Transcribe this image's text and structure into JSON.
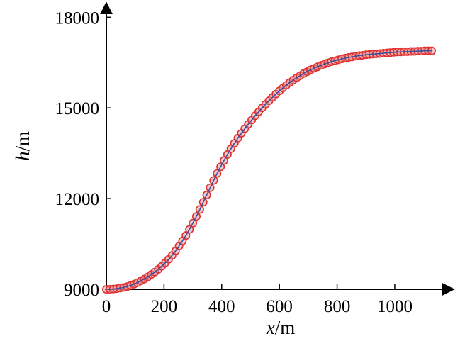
{
  "chart_data": {
    "type": "scatter",
    "title": "",
    "xlabel": {
      "var": "x",
      "unit": "/m"
    },
    "ylabel": {
      "var": "h",
      "unit": "/m"
    },
    "xlim": [
      0,
      1150
    ],
    "ylim": [
      9000,
      18500
    ],
    "x_ticks": [
      0,
      200,
      400,
      600,
      800,
      1000
    ],
    "y_ticks": [
      9000,
      12000,
      15000,
      18000
    ],
    "grid": false,
    "legend": "none",
    "colors": {
      "marker_edge": "#e03030",
      "marker_fill": "#e89a9a",
      "line": "#3a4fa0"
    },
    "series": [
      {
        "name": "",
        "x": [
          0,
          12,
          24,
          36,
          48,
          60,
          72,
          84,
          96,
          108,
          120,
          132,
          144,
          156,
          168,
          180,
          192,
          204,
          216,
          228,
          240,
          252,
          264,
          276,
          288,
          300,
          312,
          324,
          336,
          348,
          360,
          372,
          384,
          396,
          408,
          420,
          432,
          444,
          456,
          468,
          480,
          492,
          504,
          516,
          528,
          540,
          552,
          564,
          576,
          588,
          600,
          612,
          624,
          636,
          648,
          660,
          672,
          684,
          696,
          708,
          720,
          732,
          744,
          756,
          768,
          780,
          792,
          804,
          816,
          828,
          840,
          852,
          864,
          876,
          888,
          900,
          912,
          924,
          936,
          948,
          960,
          972,
          984,
          996,
          1008,
          1020,
          1032,
          1044,
          1056,
          1068,
          1080,
          1092,
          1104,
          1116,
          1128
        ],
        "y": [
          9000,
          9000,
          9010,
          9020,
          9040,
          9060,
          9090,
          9130,
          9170,
          9220,
          9280,
          9340,
          9410,
          9490,
          9570,
          9660,
          9760,
          9870,
          9990,
          10120,
          10270,
          10430,
          10600,
          10780,
          10980,
          11190,
          11410,
          11640,
          11880,
          12120,
          12360,
          12600,
          12830,
          13050,
          13260,
          13460,
          13650,
          13830,
          14000,
          14160,
          14310,
          14460,
          14600,
          14740,
          14870,
          15000,
          15120,
          15240,
          15350,
          15460,
          15560,
          15660,
          15750,
          15840,
          15920,
          16000,
          16070,
          16140,
          16200,
          16260,
          16310,
          16360,
          16410,
          16450,
          16490,
          16530,
          16560,
          16590,
          16620,
          16650,
          16670,
          16690,
          16710,
          16730,
          16740,
          16760,
          16770,
          16780,
          16790,
          16800,
          16810,
          16820,
          16830,
          16840,
          16850,
          16850,
          16860,
          16860,
          16870,
          16870,
          16880,
          16880,
          16890,
          16890,
          16890
        ]
      }
    ]
  }
}
